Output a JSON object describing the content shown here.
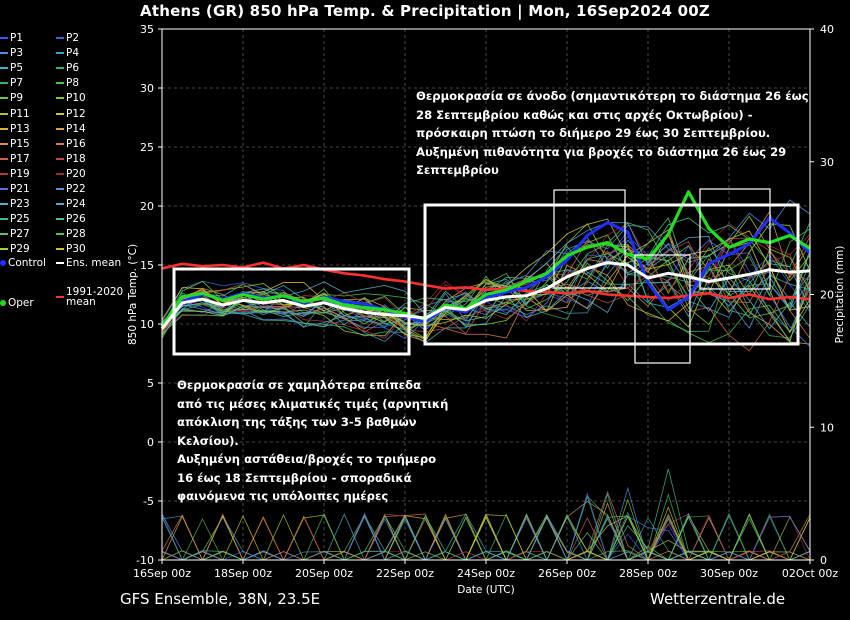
{
  "title": "Athens  (GR)  850 hPa Temp. & Precipitation | Mon, 16Sep2024 00Z",
  "footer": {
    "left": "GFS Ensemble, 38N, 23.5E",
    "right": "Wetterzentrale.de"
  },
  "annotations": {
    "top_right": [
      "Θερμοκρασία σε άνοδο (σημαντικότερη το διάστημα 26 έως",
      "28 Σεπτεμβρίου καθώς και στις αρχές Οκτωβρίου) -",
      "πρόσκαιρη πτώση το διήμερο 29 έως 30 Σεπτεμβρίου.",
      "Αυξημένη πιθανότητα για βροχές το διάστημα 26 έως 29",
      "Σεπτεμβρίου"
    ],
    "bottom_left": [
      "Θερμοκρασία σε χαμηλότερα επίπεδα",
      "από τις μέσες κλιματικές τιμές (αρνητική",
      "απόκλιση της τάξης των 3-5 βαθμών",
      "Κελσίου).",
      "Αυξημένη αστάθεια/βροχές το τριήμερο",
      "16 έως 18 Σεπτεμβρίου - σποραδικά",
      "φαινόμενα τις υπόλοιπες ημέρες"
    ]
  },
  "legend": {
    "perturbations": [
      {
        "name": "P1",
        "color": "#3b52ff"
      },
      {
        "name": "P2",
        "color": "#2f6bd6"
      },
      {
        "name": "P3",
        "color": "#4f8fe0"
      },
      {
        "name": "P4",
        "color": "#3aa0c8"
      },
      {
        "name": "P5",
        "color": "#35b5c9"
      },
      {
        "name": "P6",
        "color": "#2fb08a"
      },
      {
        "name": "P7",
        "color": "#39b06a"
      },
      {
        "name": "P8",
        "color": "#4cc04c"
      },
      {
        "name": "P9",
        "color": "#66cc33"
      },
      {
        "name": "P10",
        "color": "#88cc22"
      },
      {
        "name": "P11",
        "color": "#a8c830"
      },
      {
        "name": "P12",
        "color": "#c8c840"
      },
      {
        "name": "P13",
        "color": "#d8b040"
      },
      {
        "name": "P14",
        "color": "#e0a040"
      },
      {
        "name": "P15",
        "color": "#d89050"
      },
      {
        "name": "P16",
        "color": "#d07850"
      },
      {
        "name": "P17",
        "color": "#c86050"
      },
      {
        "name": "P18",
        "color": "#c04848"
      },
      {
        "name": "P19",
        "color": "#b03838"
      },
      {
        "name": "P20",
        "color": "#a02828"
      },
      {
        "name": "P21",
        "color": "#5870e0"
      },
      {
        "name": "P22",
        "color": "#5890d8"
      },
      {
        "name": "P23",
        "color": "#58b0c8"
      },
      {
        "name": "P24",
        "color": "#50a8d8"
      },
      {
        "name": "P25",
        "color": "#40b8a0"
      },
      {
        "name": "P26",
        "color": "#48c088"
      },
      {
        "name": "P27",
        "color": "#58c070"
      },
      {
        "name": "P28",
        "color": "#50c050"
      },
      {
        "name": "P29",
        "color": "#a0d040"
      },
      {
        "name": "P30",
        "color": "#d0c030"
      }
    ],
    "control": {
      "name": "Control",
      "color": "#1f2fff"
    },
    "ens_mean": {
      "name": "Ens. mean",
      "color": "#ffffff"
    },
    "oper": {
      "name": "Oper",
      "color": "#22dd22"
    },
    "clim": {
      "name": "1991-2020\nmean",
      "color": "#ff3030"
    }
  },
  "chart_data": {
    "type": "line",
    "title": "Athens  (GR)  850 hPa Temp. & Precipitation | Mon, 16Sep2024 00Z",
    "xlabel": "Date (UTC)",
    "ylabel": "850 hPa Temp. (°C)",
    "y2label": "Precipitation (mm)",
    "ylim": [
      -10,
      35
    ],
    "y2lim": [
      0,
      40
    ],
    "yticks": [
      -10,
      -5,
      0,
      5,
      10,
      15,
      20,
      25,
      30,
      35
    ],
    "y2ticks": [
      0,
      10,
      20,
      30,
      40
    ],
    "x_ticks": [
      "16Sep 00z",
      "18Sep 00z",
      "20Sep 00z",
      "22Sep 00z",
      "24Sep 00z",
      "26Sep 00z",
      "28Sep 00z",
      "30Sep 00z",
      "02Oct 00z"
    ],
    "x_unit": "days from 16Sep 00z",
    "grid": true,
    "series": [
      {
        "name": "Control",
        "axis": "temp",
        "x": [
          0,
          0.5,
          1,
          1.5,
          2,
          2.5,
          3,
          3.5,
          4,
          4.5,
          5,
          5.5,
          6,
          6.5,
          7,
          7.5,
          8,
          8.5,
          9,
          9.5,
          10,
          10.5,
          11,
          11.5,
          12,
          12.5,
          13,
          13.5,
          14,
          14.5,
          15,
          15.5,
          16
        ],
        "values": [
          9.8,
          11.9,
          12.5,
          12.1,
          12.6,
          12.2,
          12.4,
          11.8,
          12.3,
          11.9,
          11.7,
          11.2,
          10.6,
          10.2,
          11.4,
          11.0,
          12.2,
          12.7,
          13.1,
          14.0,
          15.4,
          17.5,
          18.6,
          17.8,
          13.5,
          11.2,
          12.3,
          15.1,
          15.9,
          16.8,
          19.0,
          17.7,
          16.0
        ]
      },
      {
        "name": "Ens. mean",
        "axis": "temp",
        "x": [
          0,
          0.5,
          1,
          1.5,
          2,
          2.5,
          3,
          3.5,
          4,
          4.5,
          5,
          5.5,
          6,
          6.5,
          7,
          7.5,
          8,
          8.5,
          9,
          9.5,
          10,
          10.5,
          11,
          11.5,
          12,
          12.5,
          13,
          13.5,
          14,
          14.5,
          15,
          15.5,
          16
        ],
        "values": [
          9.6,
          11.8,
          12.1,
          11.6,
          12.0,
          11.8,
          12.0,
          11.5,
          11.8,
          11.3,
          11.0,
          10.8,
          10.7,
          10.5,
          11.4,
          11.2,
          12.0,
          12.3,
          12.4,
          13.0,
          14.0,
          14.7,
          15.2,
          15.0,
          13.9,
          14.3,
          14.0,
          13.6,
          13.9,
          14.2,
          14.6,
          14.4,
          14.5
        ]
      },
      {
        "name": "Oper",
        "axis": "temp",
        "x": [
          0,
          0.5,
          1,
          1.5,
          2,
          2.5,
          3,
          3.5,
          4,
          4.5,
          5,
          5.5,
          6,
          6.5,
          7,
          7.5,
          8,
          8.5,
          9,
          9.5,
          10,
          10.5,
          11,
          11.5,
          12,
          12.5,
          13,
          13.5,
          14,
          14.5,
          15,
          15.5,
          16
        ],
        "values": [
          9.8,
          12.3,
          12.6,
          12.0,
          12.5,
          12.1,
          12.4,
          11.9,
          12.2,
          11.6,
          11.4,
          11.2,
          10.9,
          10.4,
          11.6,
          11.3,
          12.5,
          12.9,
          13.6,
          14.3,
          15.8,
          16.5,
          16.9,
          15.9,
          15.5,
          17.6,
          21.2,
          18.1,
          16.5,
          17.2,
          16.9,
          17.5,
          16.4
        ]
      },
      {
        "name": "1991-2020\nmean",
        "axis": "temp",
        "x": [
          0,
          0.5,
          1,
          1.5,
          2,
          2.5,
          3,
          3.5,
          4,
          4.5,
          5,
          5.5,
          6,
          6.5,
          7,
          7.5,
          8,
          8.5,
          9,
          9.5,
          10,
          10.5,
          11,
          11.5,
          12,
          12.5,
          13,
          13.5,
          14,
          14.5,
          15,
          15.5,
          16
        ],
        "values": [
          14.7,
          15.1,
          14.9,
          15.0,
          14.8,
          15.2,
          14.7,
          15.0,
          14.6,
          14.3,
          14.1,
          13.8,
          13.6,
          13.3,
          13.0,
          13.1,
          12.9,
          13.0,
          12.8,
          12.7,
          12.6,
          12.8,
          12.5,
          12.4,
          12.3,
          12.2,
          12.4,
          12.6,
          12.2,
          12.5,
          12.1,
          12.3,
          12.1
        ]
      }
    ]
  }
}
